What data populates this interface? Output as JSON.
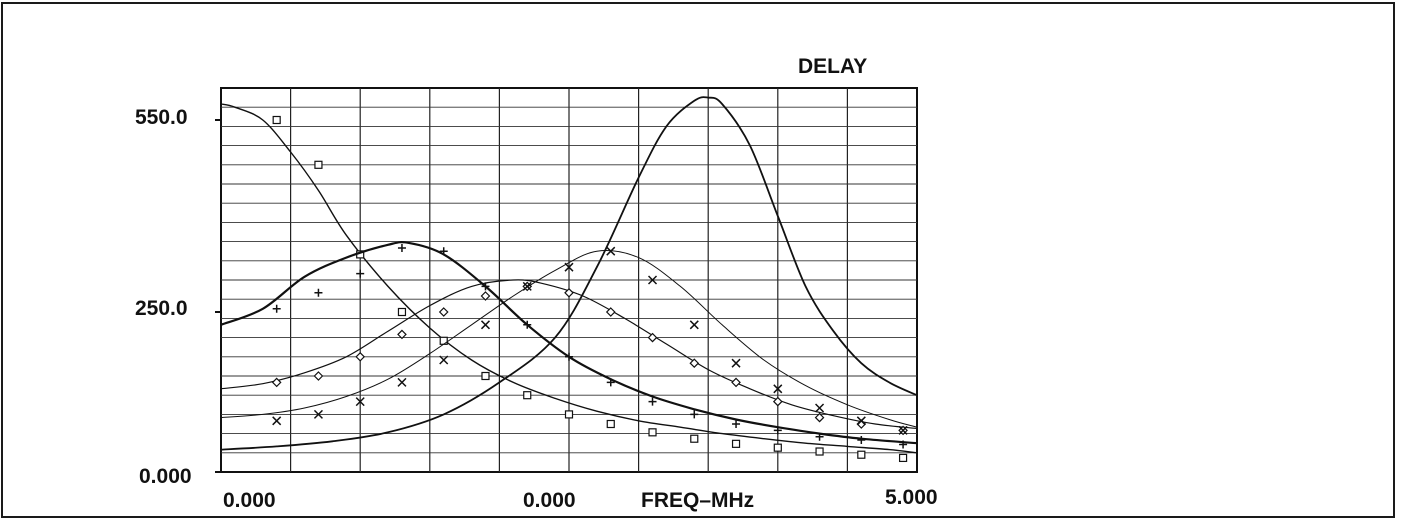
{
  "chart_data": {
    "type": "line",
    "title": "DELAY",
    "xlabel": "FREQ–MHz",
    "ylabel": "",
    "x_tick_labels": [
      "0.000",
      "0.000",
      "5.000"
    ],
    "y_tick_labels": [
      "550.0",
      "250.0",
      "0.000"
    ],
    "xlim": [
      0,
      5
    ],
    "ylim": [
      0,
      600
    ],
    "grid": true,
    "series": [
      {
        "marker": "square",
        "x": [
          0,
          0.1,
          0.3,
          0.5,
          0.7,
          0.9,
          1.2,
          1.5,
          1.8,
          2.1,
          2.4,
          2.7,
          3.0,
          3.3,
          3.6,
          3.9,
          4.2,
          4.5,
          4.8,
          5.0
        ],
        "values": [
          575,
          570,
          550,
          500,
          440,
          370,
          290,
          225,
          175,
          140,
          115,
          95,
          80,
          70,
          60,
          52,
          45,
          40,
          35,
          30
        ],
        "markers_x": [
          0.4,
          0.7,
          1.0,
          1.3,
          1.6,
          1.9,
          2.2,
          2.5,
          2.8,
          3.1,
          3.4,
          3.7,
          4.0,
          4.3,
          4.6,
          4.9
        ],
        "markers_y": [
          550,
          480,
          340,
          250,
          205,
          150,
          120,
          90,
          75,
          62,
          52,
          44,
          38,
          32,
          27,
          22
        ]
      },
      {
        "marker": "plus",
        "x": [
          0,
          0.3,
          0.6,
          0.9,
          1.2,
          1.35,
          1.6,
          1.9,
          2.2,
          2.5,
          2.8,
          3.1,
          3.4,
          3.7,
          4.0,
          4.3,
          4.6,
          5.0
        ],
        "values": [
          230,
          255,
          305,
          335,
          355,
          358,
          340,
          290,
          230,
          180,
          145,
          118,
          98,
          82,
          70,
          60,
          52,
          45
        ],
        "markers_x": [
          0.4,
          0.7,
          1.0,
          1.3,
          1.6,
          1.9,
          2.2,
          2.5,
          2.8,
          3.1,
          3.4,
          3.7,
          4.0,
          4.3,
          4.6,
          4.9
        ],
        "markers_y": [
          255,
          280,
          310,
          350,
          345,
          290,
          230,
          180,
          140,
          110,
          90,
          75,
          65,
          55,
          50,
          43
        ]
      },
      {
        "marker": "diamond",
        "x": [
          0,
          0.3,
          0.6,
          0.9,
          1.2,
          1.5,
          1.8,
          2.1,
          2.3,
          2.6,
          2.9,
          3.2,
          3.5,
          3.8,
          4.1,
          4.4,
          4.7,
          5.0
        ],
        "values": [
          130,
          138,
          155,
          180,
          220,
          260,
          290,
          300,
          295,
          275,
          240,
          200,
          160,
          130,
          105,
          88,
          75,
          68
        ],
        "markers_x": [
          0.4,
          0.7,
          1.0,
          1.3,
          1.6,
          1.9,
          2.2,
          2.5,
          2.8,
          3.1,
          3.4,
          3.7,
          4.0,
          4.3,
          4.6,
          4.9
        ],
        "markers_y": [
          140,
          150,
          180,
          215,
          250,
          275,
          290,
          280,
          250,
          210,
          170,
          140,
          110,
          85,
          75,
          65
        ]
      },
      {
        "marker": "x",
        "x": [
          0,
          0.3,
          0.6,
          0.9,
          1.2,
          1.5,
          1.8,
          2.1,
          2.4,
          2.7,
          3.0,
          3.3,
          3.6,
          3.9,
          4.2,
          4.5,
          4.8,
          5.0
        ],
        "values": [
          85,
          90,
          100,
          118,
          145,
          185,
          230,
          275,
          315,
          345,
          335,
          290,
          230,
          175,
          135,
          105,
          82,
          70
        ],
        "markers_x": [
          0.4,
          0.7,
          1.0,
          1.3,
          1.6,
          1.9,
          2.2,
          2.5,
          2.8,
          3.1,
          3.4,
          3.7,
          4.0,
          4.3,
          4.6,
          4.9
        ],
        "markers_y": [
          80,
          90,
          110,
          140,
          175,
          230,
          290,
          320,
          345,
          300,
          230,
          170,
          130,
          100,
          80,
          65
        ]
      },
      {
        "marker": "none",
        "x": [
          0,
          0.4,
          0.8,
          1.2,
          1.6,
          2.0,
          2.4,
          2.7,
          3.0,
          3.2,
          3.4,
          3.5,
          3.6,
          3.8,
          4.0,
          4.2,
          4.4,
          4.6,
          4.8,
          5.0
        ],
        "values": [
          35,
          40,
          48,
          62,
          90,
          140,
          210,
          320,
          460,
          540,
          580,
          585,
          575,
          510,
          400,
          290,
          220,
          170,
          140,
          120
        ],
        "markers_x": [],
        "markers_y": []
      }
    ]
  }
}
